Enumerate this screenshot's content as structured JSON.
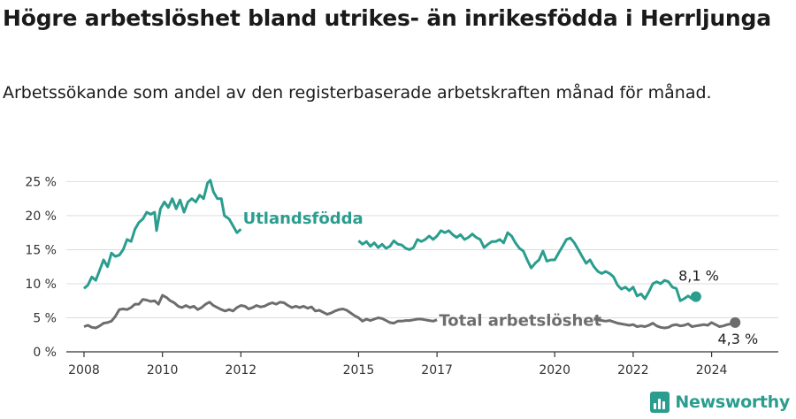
{
  "title": "Högre arbetslöshet bland utrikes- än inrikesfödda i Herrljunga",
  "subtitle": "Arbetssökande som andel av den registerbaserade arbetskraften månad för månad.",
  "logo": {
    "text": "Newsworthy"
  },
  "colors": {
    "foreign": "#2a9d8f",
    "total": "#6d6d6d",
    "grid": "#dddddd",
    "axis": "#333333"
  },
  "chart_data": {
    "type": "line",
    "y_ticks": [
      "0 %",
      "5 %",
      "10 %",
      "15 %",
      "20 %",
      "25 %"
    ],
    "x_ticks": [
      {
        "label": "2008",
        "value": 2008
      },
      {
        "label": "2010",
        "value": 2010
      },
      {
        "label": "2012",
        "value": 2012
      },
      {
        "label": "2015",
        "value": 2015
      },
      {
        "label": "2017",
        "value": 2017
      },
      {
        "label": "2020",
        "value": 2020
      },
      {
        "label": "2022",
        "value": 2022
      },
      {
        "label": "2024",
        "value": 2024
      }
    ],
    "xlim": [
      2007.55,
      2025.7
    ],
    "ylim": [
      0,
      27
    ],
    "grid": true,
    "series": [
      {
        "name": "Utlandsfödda",
        "end_label": "8,1 %",
        "points": [
          [
            2008.0,
            9.3
          ],
          [
            2008.1,
            9.8
          ],
          [
            2008.2,
            11.0
          ],
          [
            2008.3,
            10.5
          ],
          [
            2008.4,
            12.0
          ],
          [
            2008.5,
            13.5
          ],
          [
            2008.6,
            12.5
          ],
          [
            2008.7,
            14.5
          ],
          [
            2008.8,
            14.0
          ],
          [
            2008.9,
            14.2
          ],
          [
            2009.0,
            15.0
          ],
          [
            2009.1,
            16.5
          ],
          [
            2009.2,
            16.2
          ],
          [
            2009.3,
            18.0
          ],
          [
            2009.4,
            19.0
          ],
          [
            2009.5,
            19.5
          ],
          [
            2009.6,
            20.5
          ],
          [
            2009.7,
            20.2
          ],
          [
            2009.8,
            20.5
          ],
          [
            2009.85,
            17.8
          ],
          [
            2009.95,
            21.0
          ],
          [
            2010.05,
            22.0
          ],
          [
            2010.15,
            21.2
          ],
          [
            2010.25,
            22.5
          ],
          [
            2010.35,
            21.0
          ],
          [
            2010.45,
            22.3
          ],
          [
            2010.55,
            20.5
          ],
          [
            2010.65,
            22.0
          ],
          [
            2010.75,
            22.5
          ],
          [
            2010.85,
            22.0
          ],
          [
            2010.95,
            23.0
          ],
          [
            2011.05,
            22.5
          ],
          [
            2011.15,
            24.8
          ],
          [
            2011.22,
            25.2
          ],
          [
            2011.3,
            23.5
          ],
          [
            2011.4,
            22.5
          ],
          [
            2011.5,
            22.5
          ],
          [
            2011.58,
            20.0
          ],
          [
            2011.7,
            19.5
          ],
          [
            2011.8,
            18.5
          ],
          [
            2011.9,
            17.5
          ],
          [
            2012.0,
            18.0
          ]
        ],
        "points_2": [
          [
            2015.0,
            16.3
          ],
          [
            2015.1,
            15.8
          ],
          [
            2015.2,
            16.2
          ],
          [
            2015.3,
            15.5
          ],
          [
            2015.4,
            16.0
          ],
          [
            2015.5,
            15.3
          ],
          [
            2015.6,
            15.8
          ],
          [
            2015.7,
            15.2
          ],
          [
            2015.8,
            15.5
          ],
          [
            2015.9,
            16.3
          ],
          [
            2016.0,
            15.8
          ],
          [
            2016.1,
            15.7
          ],
          [
            2016.2,
            15.2
          ],
          [
            2016.3,
            15.0
          ],
          [
            2016.4,
            15.3
          ],
          [
            2016.5,
            16.5
          ],
          [
            2016.6,
            16.2
          ],
          [
            2016.7,
            16.5
          ],
          [
            2016.8,
            17.0
          ],
          [
            2016.9,
            16.5
          ],
          [
            2017.0,
            17.0
          ],
          [
            2017.1,
            17.8
          ],
          [
            2017.2,
            17.5
          ],
          [
            2017.3,
            17.8
          ],
          [
            2017.4,
            17.2
          ],
          [
            2017.5,
            16.8
          ],
          [
            2017.6,
            17.2
          ],
          [
            2017.7,
            16.5
          ],
          [
            2017.8,
            16.8
          ],
          [
            2017.9,
            17.3
          ],
          [
            2018.0,
            16.8
          ],
          [
            2018.1,
            16.5
          ],
          [
            2018.2,
            15.3
          ],
          [
            2018.3,
            15.8
          ],
          [
            2018.4,
            16.2
          ],
          [
            2018.5,
            16.2
          ],
          [
            2018.6,
            16.5
          ],
          [
            2018.7,
            16.0
          ],
          [
            2018.8,
            17.5
          ],
          [
            2018.9,
            17.0
          ],
          [
            2019.0,
            16.0
          ],
          [
            2019.1,
            15.2
          ],
          [
            2019.2,
            14.8
          ],
          [
            2019.3,
            13.5
          ],
          [
            2019.4,
            12.3
          ],
          [
            2019.5,
            13.0
          ],
          [
            2019.6,
            13.5
          ],
          [
            2019.7,
            14.8
          ],
          [
            2019.8,
            13.3
          ],
          [
            2019.9,
            13.5
          ],
          [
            2020.0,
            13.5
          ],
          [
            2020.1,
            14.5
          ],
          [
            2020.2,
            15.5
          ],
          [
            2020.3,
            16.5
          ],
          [
            2020.4,
            16.7
          ],
          [
            2020.5,
            16.0
          ],
          [
            2020.6,
            15.0
          ],
          [
            2020.7,
            14.0
          ],
          [
            2020.8,
            13.0
          ],
          [
            2020.9,
            13.5
          ],
          [
            2021.0,
            12.5
          ],
          [
            2021.1,
            11.8
          ],
          [
            2021.2,
            11.5
          ],
          [
            2021.3,
            11.8
          ],
          [
            2021.4,
            11.5
          ],
          [
            2021.5,
            11.0
          ],
          [
            2021.6,
            9.8
          ],
          [
            2021.7,
            9.2
          ],
          [
            2021.8,
            9.5
          ],
          [
            2021.9,
            9.0
          ],
          [
            2022.0,
            9.5
          ],
          [
            2022.1,
            8.2
          ],
          [
            2022.2,
            8.5
          ],
          [
            2022.3,
            7.8
          ],
          [
            2022.4,
            8.8
          ],
          [
            2022.5,
            10.0
          ],
          [
            2022.6,
            10.3
          ],
          [
            2022.7,
            10.0
          ],
          [
            2022.8,
            10.5
          ],
          [
            2022.9,
            10.3
          ],
          [
            2023.0,
            9.5
          ],
          [
            2023.1,
            9.3
          ],
          [
            2023.2,
            7.5
          ],
          [
            2023.3,
            7.8
          ],
          [
            2023.4,
            8.2
          ],
          [
            2023.5,
            7.8
          ],
          [
            2023.6,
            8.1
          ]
        ]
      },
      {
        "name": "Total arbetslöshet",
        "end_label": "4,3 %",
        "points": [
          [
            2008.0,
            3.7
          ],
          [
            2008.1,
            3.9
          ],
          [
            2008.2,
            3.6
          ],
          [
            2008.3,
            3.5
          ],
          [
            2008.4,
            3.8
          ],
          [
            2008.5,
            4.2
          ],
          [
            2008.6,
            4.3
          ],
          [
            2008.7,
            4.5
          ],
          [
            2008.8,
            5.2
          ],
          [
            2008.9,
            6.2
          ],
          [
            2009.0,
            6.3
          ],
          [
            2009.1,
            6.2
          ],
          [
            2009.2,
            6.5
          ],
          [
            2009.3,
            7.0
          ],
          [
            2009.4,
            7.0
          ],
          [
            2009.5,
            7.7
          ],
          [
            2009.6,
            7.6
          ],
          [
            2009.7,
            7.4
          ],
          [
            2009.8,
            7.5
          ],
          [
            2009.9,
            7.0
          ],
          [
            2010.0,
            8.3
          ],
          [
            2010.1,
            8.0
          ],
          [
            2010.2,
            7.5
          ],
          [
            2010.3,
            7.2
          ],
          [
            2010.4,
            6.7
          ],
          [
            2010.5,
            6.5
          ],
          [
            2010.6,
            6.8
          ],
          [
            2010.7,
            6.5
          ],
          [
            2010.8,
            6.7
          ],
          [
            2010.9,
            6.2
          ],
          [
            2011.0,
            6.5
          ],
          [
            2011.1,
            7.0
          ],
          [
            2011.2,
            7.3
          ],
          [
            2011.3,
            6.8
          ],
          [
            2011.4,
            6.5
          ],
          [
            2011.5,
            6.2
          ],
          [
            2011.6,
            6.0
          ],
          [
            2011.7,
            6.2
          ],
          [
            2011.8,
            6.0
          ],
          [
            2011.9,
            6.5
          ],
          [
            2012.0,
            6.8
          ],
          [
            2012.1,
            6.7
          ],
          [
            2012.2,
            6.3
          ],
          [
            2012.3,
            6.5
          ],
          [
            2012.4,
            6.8
          ],
          [
            2012.5,
            6.6
          ],
          [
            2012.6,
            6.7
          ],
          [
            2012.7,
            7.0
          ],
          [
            2012.8,
            7.2
          ],
          [
            2012.9,
            7.0
          ],
          [
            2013.0,
            7.3
          ],
          [
            2013.1,
            7.2
          ],
          [
            2013.2,
            6.8
          ],
          [
            2013.3,
            6.5
          ],
          [
            2013.4,
            6.7
          ],
          [
            2013.5,
            6.5
          ],
          [
            2013.6,
            6.7
          ],
          [
            2013.7,
            6.4
          ],
          [
            2013.8,
            6.6
          ],
          [
            2013.9,
            6.0
          ],
          [
            2014.0,
            6.1
          ],
          [
            2014.1,
            5.8
          ],
          [
            2014.2,
            5.5
          ],
          [
            2014.3,
            5.7
          ],
          [
            2014.4,
            6.0
          ],
          [
            2014.5,
            6.2
          ],
          [
            2014.6,
            6.3
          ],
          [
            2014.7,
            6.1
          ],
          [
            2014.8,
            5.7
          ],
          [
            2014.9,
            5.3
          ],
          [
            2015.0,
            5.0
          ],
          [
            2015.1,
            4.5
          ],
          [
            2015.2,
            4.8
          ],
          [
            2015.3,
            4.6
          ],
          [
            2015.4,
            4.8
          ],
          [
            2015.5,
            5.0
          ],
          [
            2015.6,
            4.9
          ],
          [
            2015.7,
            4.6
          ],
          [
            2015.8,
            4.3
          ],
          [
            2015.9,
            4.2
          ],
          [
            2016.0,
            4.5
          ],
          [
            2016.1,
            4.5
          ],
          [
            2016.2,
            4.6
          ],
          [
            2016.3,
            4.6
          ],
          [
            2016.4,
            4.7
          ],
          [
            2016.5,
            4.8
          ],
          [
            2016.6,
            4.8
          ],
          [
            2016.7,
            4.7
          ],
          [
            2016.8,
            4.6
          ],
          [
            2016.9,
            4.5
          ],
          [
            2017.0,
            4.7
          ]
        ],
        "points_2": [
          [
            2021.0,
            4.8
          ],
          [
            2021.1,
            4.7
          ],
          [
            2021.2,
            4.6
          ],
          [
            2021.3,
            4.5
          ],
          [
            2021.4,
            4.6
          ],
          [
            2021.5,
            4.4
          ],
          [
            2021.6,
            4.2
          ],
          [
            2021.7,
            4.1
          ],
          [
            2021.8,
            4.0
          ],
          [
            2021.9,
            3.9
          ],
          [
            2022.0,
            4.0
          ],
          [
            2022.1,
            3.7
          ],
          [
            2022.2,
            3.8
          ],
          [
            2022.3,
            3.7
          ],
          [
            2022.4,
            3.9
          ],
          [
            2022.5,
            4.2
          ],
          [
            2022.6,
            3.8
          ],
          [
            2022.7,
            3.6
          ],
          [
            2022.8,
            3.5
          ],
          [
            2022.9,
            3.6
          ],
          [
            2023.0,
            3.9
          ],
          [
            2023.1,
            4.0
          ],
          [
            2023.2,
            3.8
          ],
          [
            2023.3,
            3.9
          ],
          [
            2023.4,
            4.1
          ],
          [
            2023.5,
            3.7
          ],
          [
            2023.6,
            3.8
          ],
          [
            2023.7,
            3.9
          ],
          [
            2023.8,
            4.0
          ],
          [
            2023.9,
            3.9
          ],
          [
            2024.0,
            4.3
          ],
          [
            2024.1,
            4.0
          ],
          [
            2024.2,
            3.7
          ],
          [
            2024.3,
            3.8
          ],
          [
            2024.4,
            4.0
          ],
          [
            2024.5,
            4.1
          ],
          [
            2024.6,
            4.3
          ]
        ]
      }
    ]
  }
}
